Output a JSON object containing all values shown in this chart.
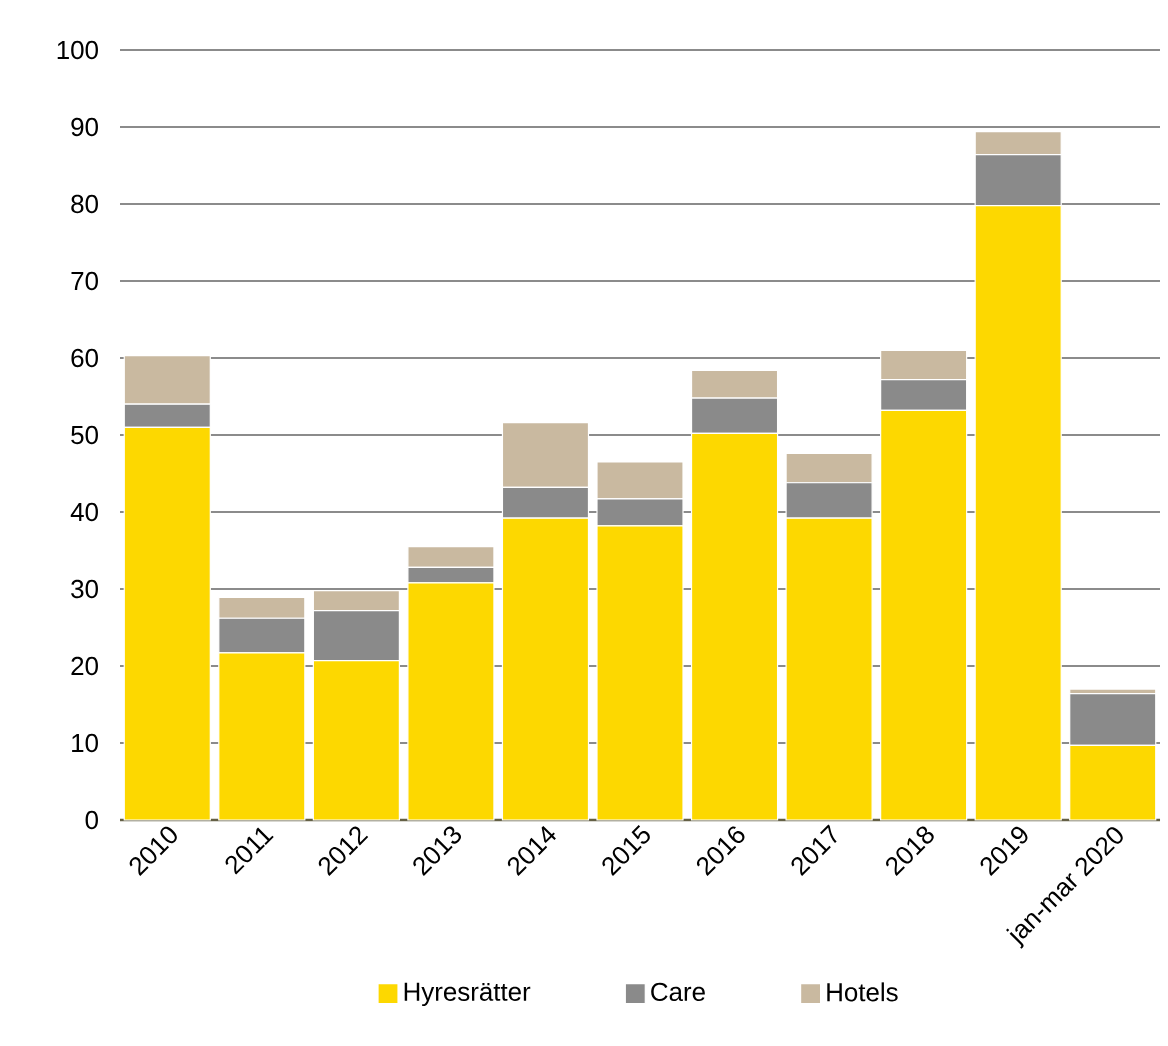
{
  "chart_data": {
    "type": "bar",
    "stacked": true,
    "categories": [
      "2010",
      "2011",
      "2012",
      "2013",
      "2014",
      "2015",
      "2016",
      "2017",
      "2018",
      "2019",
      "jan-mar 2020"
    ],
    "series": [
      {
        "name": "Hyresrätter",
        "color": "#fdd800",
        "values": [
          51,
          21.7,
          20.7,
          30.8,
          39.2,
          38.2,
          50.2,
          39.2,
          53.2,
          79.8,
          9.7
        ]
      },
      {
        "name": "Care",
        "color": "#8a8a8a",
        "values": [
          3,
          4.5,
          6.5,
          2.0,
          4.0,
          3.5,
          4.6,
          4.6,
          4.0,
          6.6,
          6.7
        ]
      },
      {
        "name": "Hotels",
        "color": "#c9b9a0",
        "values": [
          6.3,
          2.7,
          2.6,
          2.7,
          8.4,
          4.8,
          3.6,
          3.8,
          3.8,
          3.0,
          0.6
        ]
      }
    ],
    "ylim": [
      0,
      100
    ],
    "yticks": [
      0,
      10,
      20,
      30,
      40,
      50,
      60,
      70,
      80,
      90,
      100
    ],
    "grid": "y",
    "legend": "bottom"
  }
}
